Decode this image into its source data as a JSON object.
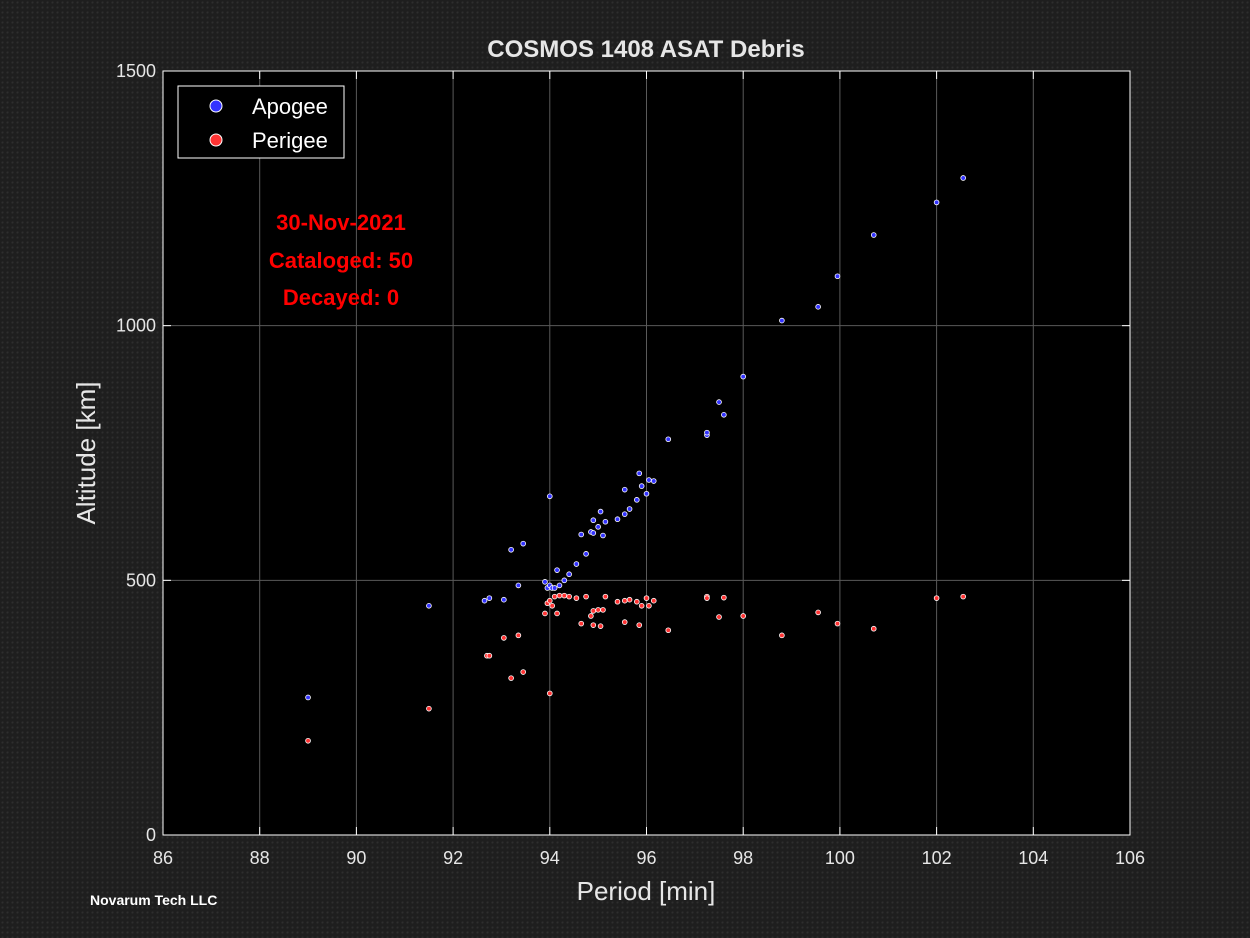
{
  "credit": "Novarum Tech LLC",
  "chart_data": {
    "type": "scatter",
    "title": "COSMOS 1408 ASAT Debris",
    "xlabel": "Period [min]",
    "ylabel": "Altitude [km]",
    "xlim": [
      86,
      106
    ],
    "ylim": [
      0,
      1500
    ],
    "xticks": [
      86,
      88,
      90,
      92,
      94,
      96,
      98,
      100,
      102,
      104,
      106
    ],
    "yticks": [
      0,
      500,
      1000,
      1500
    ],
    "grid": true,
    "legend_position": "top-left",
    "background": "#000000",
    "annotation": [
      "30-Nov-2021",
      "Cataloged: 50",
      "Decayed: 0"
    ],
    "annotation_color": "#ff0000",
    "series": [
      {
        "name": "Apogee",
        "color": "#3333ff",
        "points": [
          [
            89.0,
            270
          ],
          [
            91.5,
            450
          ],
          [
            92.65,
            460
          ],
          [
            92.75,
            465
          ],
          [
            93.05,
            462
          ],
          [
            93.2,
            560
          ],
          [
            93.35,
            490
          ],
          [
            93.45,
            572
          ],
          [
            93.9,
            497
          ],
          [
            93.95,
            485
          ],
          [
            94.0,
            665
          ],
          [
            94.0,
            490
          ],
          [
            94.05,
            485
          ],
          [
            94.1,
            485
          ],
          [
            94.15,
            520
          ],
          [
            94.2,
            490
          ],
          [
            94.3,
            500
          ],
          [
            94.4,
            512
          ],
          [
            94.55,
            532
          ],
          [
            94.65,
            590
          ],
          [
            94.75,
            552
          ],
          [
            94.85,
            595
          ],
          [
            94.9,
            618
          ],
          [
            94.9,
            593
          ],
          [
            95.0,
            605
          ],
          [
            95.05,
            635
          ],
          [
            95.1,
            588
          ],
          [
            95.15,
            615
          ],
          [
            95.4,
            620
          ],
          [
            95.55,
            630
          ],
          [
            95.55,
            678
          ],
          [
            95.65,
            640
          ],
          [
            95.8,
            658
          ],
          [
            95.85,
            710
          ],
          [
            95.9,
            685
          ],
          [
            96.0,
            670
          ],
          [
            96.05,
            697
          ],
          [
            96.15,
            695
          ],
          [
            96.45,
            777
          ],
          [
            97.25,
            785
          ],
          [
            97.25,
            790
          ],
          [
            97.5,
            850
          ],
          [
            97.6,
            825
          ],
          [
            98.0,
            900
          ],
          [
            98.8,
            1010
          ],
          [
            99.55,
            1037
          ],
          [
            99.95,
            1097
          ],
          [
            100.7,
            1178
          ],
          [
            102.0,
            1242
          ],
          [
            102.55,
            1290
          ]
        ]
      },
      {
        "name": "Perigee",
        "color": "#ff3333",
        "points": [
          [
            89.0,
            185
          ],
          [
            91.5,
            248
          ],
          [
            92.7,
            352
          ],
          [
            92.75,
            352
          ],
          [
            93.05,
            387
          ],
          [
            93.2,
            308
          ],
          [
            93.35,
            392
          ],
          [
            93.45,
            320
          ],
          [
            93.9,
            435
          ],
          [
            93.95,
            455
          ],
          [
            94.0,
            278
          ],
          [
            94.0,
            460
          ],
          [
            94.05,
            450
          ],
          [
            94.1,
            468
          ],
          [
            94.15,
            435
          ],
          [
            94.2,
            470
          ],
          [
            94.3,
            470
          ],
          [
            94.4,
            468
          ],
          [
            94.55,
            465
          ],
          [
            94.65,
            415
          ],
          [
            94.75,
            468
          ],
          [
            94.85,
            430
          ],
          [
            94.9,
            412
          ],
          [
            94.9,
            440
          ],
          [
            95.0,
            442
          ],
          [
            95.05,
            410
          ],
          [
            95.1,
            442
          ],
          [
            95.15,
            468
          ],
          [
            95.4,
            458
          ],
          [
            95.55,
            418
          ],
          [
            95.55,
            460
          ],
          [
            95.65,
            462
          ],
          [
            95.8,
            458
          ],
          [
            95.85,
            412
          ],
          [
            95.9,
            450
          ],
          [
            96.0,
            465
          ],
          [
            96.05,
            450
          ],
          [
            96.15,
            460
          ],
          [
            96.45,
            402
          ],
          [
            97.25,
            468
          ],
          [
            97.25,
            465
          ],
          [
            97.5,
            428
          ],
          [
            97.6,
            466
          ],
          [
            98.0,
            430
          ],
          [
            98.8,
            392
          ],
          [
            99.55,
            437
          ],
          [
            99.95,
            415
          ],
          [
            100.7,
            405
          ],
          [
            102.0,
            465
          ],
          [
            102.55,
            468
          ]
        ]
      }
    ]
  }
}
